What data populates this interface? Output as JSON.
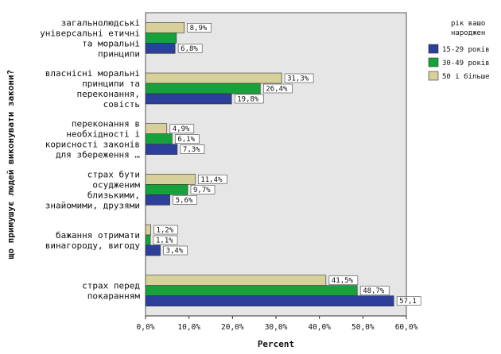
{
  "colors": {
    "plot_bg": "#e6e6e6",
    "series": [
      "#2b3f9b",
      "#17a13a",
      "#d8d09a"
    ]
  },
  "chart_data": {
    "type": "bar",
    "orientation": "horizontal",
    "xlabel": "Percent",
    "ylabel": "що примушує людей виконувати закони?",
    "xlim": [
      0,
      60
    ],
    "xticks": [
      "0,0%",
      "10,0%",
      "20,0%",
      "30,0%",
      "40,0%",
      "50,0%",
      "60,0%"
    ],
    "legend_title": [
      "рік вашо",
      "народжен"
    ],
    "categories": [
      [
        "загальнолюдські",
        "універсальні етичні",
        "та моральні",
        "принципи"
      ],
      [
        "власнісні моральні",
        "принципи та",
        "переконання,",
        "совість"
      ],
      [
        "переконання в",
        "необхідності і",
        "корисності законів",
        "для збереження …"
      ],
      [
        "страх бути",
        "осудженим",
        "близькими,",
        "знайомими, друзями"
      ],
      [
        "бажання отримати",
        "винагороду, вигоду"
      ],
      [
        "страх перед",
        "покаранням"
      ]
    ],
    "series": [
      {
        "name": "15-29 років",
        "values": [
          6.8,
          19.8,
          7.3,
          5.6,
          3.4,
          57.1
        ],
        "labels": [
          "6,8%",
          "19,8%",
          "7,3%",
          "5,6%",
          "3,4%",
          "57,1"
        ]
      },
      {
        "name": "30-49 років",
        "values": [
          7.1,
          26.4,
          6.1,
          9.7,
          1.1,
          48.7
        ],
        "labels": [
          "",
          "26,4%",
          "6,1%",
          "9,7%",
          "1,1%",
          "48,7%"
        ]
      },
      {
        "name": "50 і більше",
        "values": [
          8.9,
          31.3,
          4.9,
          11.4,
          1.2,
          41.5
        ],
        "labels": [
          "8,9%",
          "31,3%",
          "4,9%",
          "11,4%",
          "1,2%",
          "41,5%"
        ]
      }
    ]
  }
}
